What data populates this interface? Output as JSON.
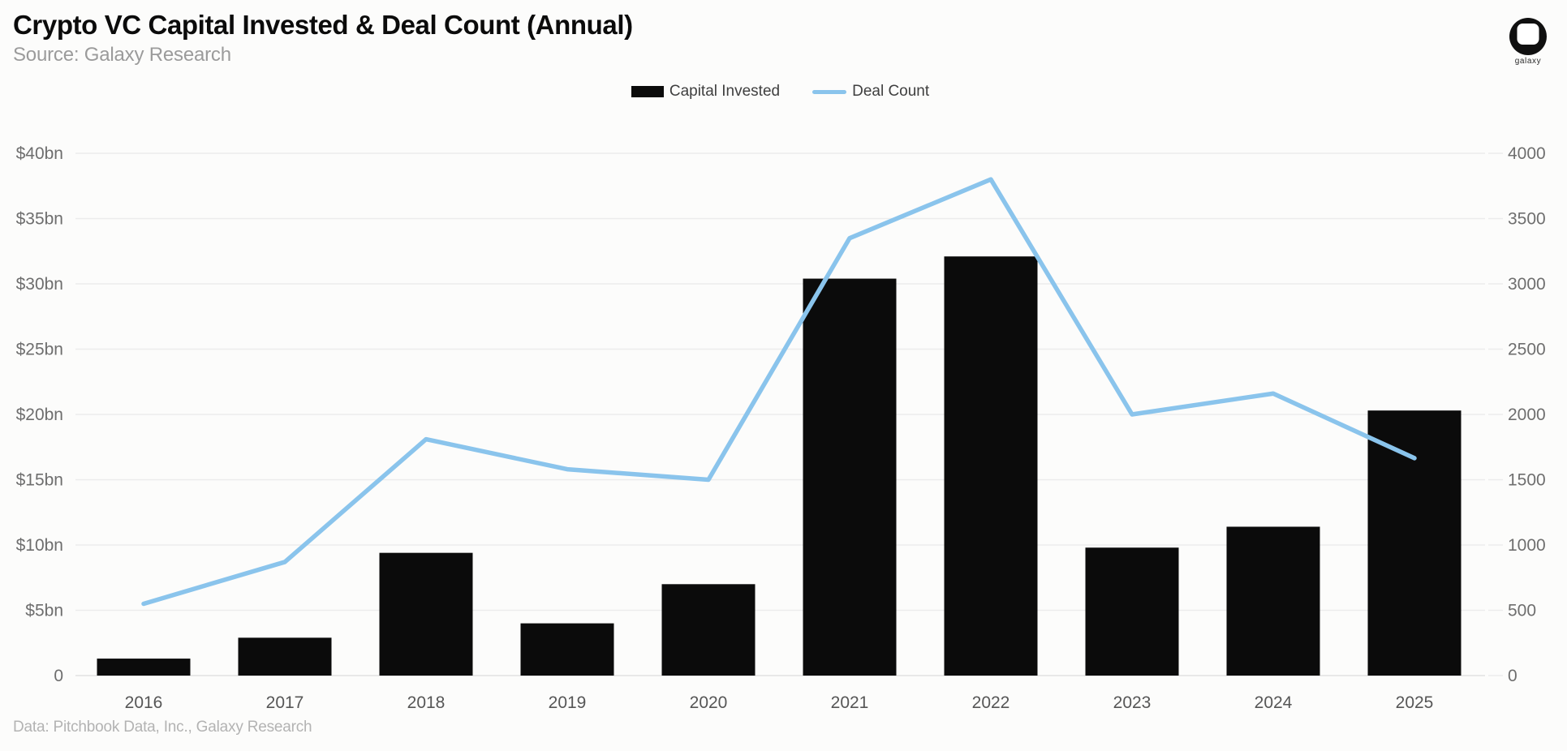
{
  "header": {
    "title": "Crypto VC Capital Invested & Deal Count (Annual)",
    "subtitle": "Source: Galaxy Research",
    "logo_text": "galaxy"
  },
  "footer": {
    "credit": "Data: Pitchbook Data, Inc., Galaxy Research"
  },
  "chart_data": {
    "type": "bar+line combo, dual axis",
    "title": "Crypto VC Capital Invested & Deal Count (Annual)",
    "categories": [
      "2016",
      "2017",
      "2018",
      "2019",
      "2020",
      "2021",
      "2022",
      "2023",
      "2024",
      "2025"
    ],
    "series": [
      {
        "name": "Capital Invested",
        "type": "bar",
        "axis": "left",
        "unit": "$bn",
        "color": "#0b0b0b",
        "values": [
          1.3,
          2.9,
          9.4,
          4.0,
          7.0,
          30.4,
          32.1,
          9.8,
          11.4,
          20.3
        ]
      },
      {
        "name": "Deal Count",
        "type": "line",
        "axis": "right",
        "unit": "deals",
        "color": "#8ac4ec",
        "values": [
          550,
          870,
          1810,
          1580,
          1500,
          3350,
          3800,
          2000,
          2160,
          1665
        ]
      }
    ],
    "left_axis": {
      "min": 0,
      "max": 40,
      "step": 5,
      "tick_labels": [
        "$40bn",
        "$35bn",
        "$30bn",
        "$25bn",
        "$20bn",
        "$15bn",
        "$10bn",
        "$5bn",
        "0"
      ]
    },
    "right_axis": {
      "min": 0,
      "max": 4000,
      "step": 500,
      "tick_labels": [
        "4000",
        "3500",
        "3000",
        "2500",
        "2000",
        "1500",
        "1000",
        "500",
        "0"
      ]
    },
    "grid": true,
    "legend_position": "top-center",
    "grid_color": "#ececec",
    "baseline_color": "#e2e2e2",
    "axis_label_color": "#6e6e6e",
    "x_label_color": "#565656"
  }
}
